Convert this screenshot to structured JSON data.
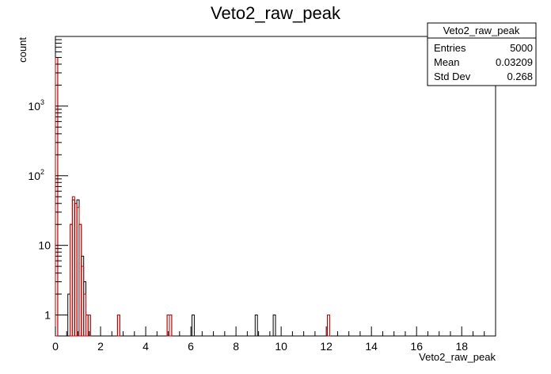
{
  "chart_data": {
    "type": "histogram",
    "title": "Veto2_raw_peak",
    "xlabel": "Veto2_raw_peak",
    "ylabel": "count",
    "xlim": [
      0,
      19.5
    ],
    "ylim": [
      0.5,
      10000
    ],
    "y_scale": "log",
    "grid": false,
    "x_ticks": [
      0,
      2,
      4,
      6,
      8,
      10,
      12,
      14,
      16,
      18
    ],
    "y_ticks": [
      {
        "value": 1,
        "base": "1",
        "exp": ""
      },
      {
        "value": 10,
        "base": "10",
        "exp": ""
      },
      {
        "value": 100,
        "base": "10",
        "exp": "2"
      },
      {
        "value": 1000,
        "base": "10",
        "exp": "3"
      }
    ],
    "series": [
      {
        "color": "#000000",
        "points": [
          {
            "x": 0.05,
            "y": 5000
          },
          {
            "x": 0.6,
            "y": 2
          },
          {
            "x": 0.7,
            "y": 20
          },
          {
            "x": 0.8,
            "y": 45
          },
          {
            "x": 0.9,
            "y": 40
          },
          {
            "x": 1.0,
            "y": 45
          },
          {
            "x": 1.1,
            "y": 20
          },
          {
            "x": 1.2,
            "y": 7
          },
          {
            "x": 1.3,
            "y": 3
          },
          {
            "x": 1.5,
            "y": 1
          },
          {
            "x": 2.8,
            "y": 1
          },
          {
            "x": 5.0,
            "y": 1
          },
          {
            "x": 5.1,
            "y": 1
          },
          {
            "x": 6.1,
            "y": 1
          },
          {
            "x": 8.9,
            "y": 1
          },
          {
            "x": 9.7,
            "y": 1
          },
          {
            "x": 12.1,
            "y": 1
          }
        ]
      },
      {
        "color": "#cc0000",
        "points": [
          {
            "x": 0.05,
            "y": 5000
          },
          {
            "x": 0.7,
            "y": 20
          },
          {
            "x": 0.8,
            "y": 50
          },
          {
            "x": 0.9,
            "y": 40
          },
          {
            "x": 1.0,
            "y": 35
          },
          {
            "x": 1.1,
            "y": 20
          },
          {
            "x": 1.2,
            "y": 5
          },
          {
            "x": 1.3,
            "y": 2
          },
          {
            "x": 1.4,
            "y": 1
          },
          {
            "x": 1.5,
            "y": 1
          },
          {
            "x": 2.8,
            "y": 1
          },
          {
            "x": 5.0,
            "y": 1
          },
          {
            "x": 5.1,
            "y": 1
          },
          {
            "x": 12.1,
            "y": 1
          }
        ]
      }
    ],
    "stats_box": {
      "title": "Veto2_raw_peak",
      "rows": [
        {
          "label": "Entries",
          "value": "5000"
        },
        {
          "label": "Mean",
          "value": "0.03209"
        },
        {
          "label": "Std Dev",
          "value": "0.268"
        }
      ]
    }
  }
}
